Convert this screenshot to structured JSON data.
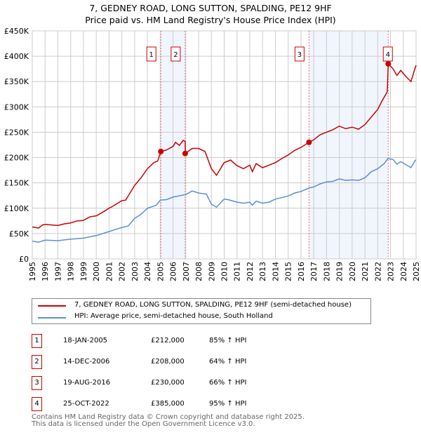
{
  "chart_data": {
    "type": "line",
    "title": "7, GEDNEY ROAD, LONG SUTTON, SPALDING, PE12 9HF",
    "subtitle": "Price paid vs. HM Land Registry's House Price Index (HPI)",
    "xlim": [
      1995,
      2025
    ],
    "ylim": [
      0,
      450000
    ],
    "x_ticks": [
      "1995",
      "1996",
      "1997",
      "1998",
      "1999",
      "2000",
      "2001",
      "2002",
      "2003",
      "2004",
      "2005",
      "2006",
      "2007",
      "2008",
      "2009",
      "2010",
      "2011",
      "2012",
      "2013",
      "2014",
      "2015",
      "2016",
      "2017",
      "2018",
      "2019",
      "2020",
      "2021",
      "2022",
      "2023",
      "2024",
      "2025"
    ],
    "y_ticks": [
      {
        "v": 0,
        "label": "£0"
      },
      {
        "v": 50000,
        "label": "£50K"
      },
      {
        "v": 100000,
        "label": "£100K"
      },
      {
        "v": 150000,
        "label": "£150K"
      },
      {
        "v": 200000,
        "label": "£200K"
      },
      {
        "v": 250000,
        "label": "£250K"
      },
      {
        "v": 300000,
        "label": "£300K"
      },
      {
        "v": 350000,
        "label": "£350K"
      },
      {
        "v": 400000,
        "label": "£400K"
      },
      {
        "v": 450000,
        "label": "£450K"
      }
    ],
    "grid": true,
    "series": [
      {
        "name": "7, GEDNEY ROAD, LONG SUTTON, SPALDING, PE12 9HF (semi-detached house)",
        "color": "#cc0000",
        "points": [
          [
            1995,
            63
          ],
          [
            1995.5,
            61
          ],
          [
            1995.8,
            67
          ],
          [
            1996,
            68
          ],
          [
            1997,
            66
          ],
          [
            1997.5,
            69
          ],
          [
            1998,
            71
          ],
          [
            1998.5,
            75
          ],
          [
            1999,
            76
          ],
          [
            1999.5,
            83
          ],
          [
            2000,
            85
          ],
          [
            2000.5,
            92
          ],
          [
            2001,
            100
          ],
          [
            2001.3,
            104
          ],
          [
            2002,
            115
          ],
          [
            2002.3,
            116
          ],
          [
            2003,
            145
          ],
          [
            2003.5,
            160
          ],
          [
            2004,
            178
          ],
          [
            2004.5,
            190
          ],
          [
            2004.8,
            193
          ],
          [
            2005.05,
            212
          ],
          [
            2005.5,
            215
          ],
          [
            2006,
            222
          ],
          [
            2006.2,
            230
          ],
          [
            2006.5,
            224
          ],
          [
            2006.8,
            234
          ],
          [
            2006.95,
            232
          ],
          [
            2006.96,
            208
          ],
          [
            2007.5,
            218
          ],
          [
            2008,
            218
          ],
          [
            2008.5,
            212
          ],
          [
            2009,
            178
          ],
          [
            2009.4,
            165
          ],
          [
            2010,
            190
          ],
          [
            2010.5,
            195
          ],
          [
            2011,
            184
          ],
          [
            2011.5,
            178
          ],
          [
            2012,
            185
          ],
          [
            2012.2,
            172
          ],
          [
            2012.5,
            188
          ],
          [
            2013,
            180
          ],
          [
            2013.5,
            185
          ],
          [
            2014,
            190
          ],
          [
            2014.5,
            198
          ],
          [
            2015,
            205
          ],
          [
            2015.5,
            214
          ],
          [
            2016,
            220
          ],
          [
            2016.63,
            230
          ],
          [
            2017,
            235
          ],
          [
            2017.5,
            245
          ],
          [
            2018,
            250
          ],
          [
            2018.5,
            255
          ],
          [
            2019,
            262
          ],
          [
            2019.5,
            257
          ],
          [
            2020,
            260
          ],
          [
            2020.5,
            256
          ],
          [
            2021,
            265
          ],
          [
            2021.5,
            280
          ],
          [
            2022,
            295
          ],
          [
            2022.3,
            310
          ],
          [
            2022.75,
            330
          ],
          [
            2022.82,
            385
          ],
          [
            2023.2,
            375
          ],
          [
            2023.5,
            362
          ],
          [
            2023.8,
            372
          ],
          [
            2024.2,
            360
          ],
          [
            2024.6,
            350
          ],
          [
            2024.9,
            375
          ],
          [
            2025,
            382
          ]
        ]
      },
      {
        "name": "HPI: Average price, semi-detached house, South Holland",
        "color": "#5b8fd4",
        "points": [
          [
            1995,
            35
          ],
          [
            1995.5,
            33
          ],
          [
            1996,
            37
          ],
          [
            1997,
            36
          ],
          [
            1998,
            39
          ],
          [
            1999,
            41
          ],
          [
            2000,
            46
          ],
          [
            2001,
            54
          ],
          [
            2002,
            62
          ],
          [
            2002.5,
            65
          ],
          [
            2003,
            80
          ],
          [
            2003.5,
            88
          ],
          [
            2004,
            100
          ],
          [
            2004.7,
            106
          ],
          [
            2005,
            116
          ],
          [
            2005.5,
            117
          ],
          [
            2006,
            122
          ],
          [
            2007,
            127
          ],
          [
            2007.5,
            134
          ],
          [
            2008,
            130
          ],
          [
            2008.6,
            128
          ],
          [
            2009,
            108
          ],
          [
            2009.4,
            102
          ],
          [
            2010,
            118
          ],
          [
            2010.3,
            117
          ],
          [
            2011,
            112
          ],
          [
            2011.5,
            110
          ],
          [
            2012,
            112
          ],
          [
            2012.2,
            106
          ],
          [
            2012.5,
            114
          ],
          [
            2013,
            110
          ],
          [
            2013.5,
            112
          ],
          [
            2014,
            118
          ],
          [
            2015,
            124
          ],
          [
            2015.5,
            130
          ],
          [
            2016,
            133
          ],
          [
            2016.63,
            140
          ],
          [
            2017,
            142
          ],
          [
            2017.5,
            148
          ],
          [
            2018,
            152
          ],
          [
            2018.5,
            153
          ],
          [
            2019,
            158
          ],
          [
            2019.5,
            155
          ],
          [
            2020,
            156
          ],
          [
            2020.5,
            155
          ],
          [
            2021,
            160
          ],
          [
            2021.5,
            172
          ],
          [
            2022,
            178
          ],
          [
            2022.5,
            188
          ],
          [
            2022.8,
            198
          ],
          [
            2023.2,
            196
          ],
          [
            2023.5,
            187
          ],
          [
            2023.8,
            192
          ],
          [
            2024.2,
            186
          ],
          [
            2024.6,
            180
          ],
          [
            2024.9,
            193
          ],
          [
            2025,
            196
          ]
        ]
      }
    ],
    "y_units": "thousands GBP for points",
    "shaded_ranges": [
      [
        2005.05,
        2006.96
      ],
      [
        2016.63,
        2022.82
      ]
    ],
    "sales": [
      {
        "id": "1",
        "x": 2005.05,
        "value": 212000,
        "date": "18-JAN-2005",
        "price": "£212,000",
        "hpi": "85% ↑ HPI"
      },
      {
        "id": "2",
        "x": 2006.95,
        "value": 208000,
        "date": "14-DEC-2006",
        "price": "£208,000",
        "hpi": "64% ↑ HPI"
      },
      {
        "id": "3",
        "x": 2016.63,
        "value": 230000,
        "date": "19-AUG-2016",
        "price": "£230,000",
        "hpi": "66% ↑ HPI"
      },
      {
        "id": "4",
        "x": 2022.82,
        "value": 385000,
        "date": "25-OCT-2022",
        "price": "£385,000",
        "hpi": "95% ↑ HPI"
      }
    ]
  },
  "footer": {
    "line1": "Contains HM Land Registry data © Crown copyright and database right 2025.",
    "line2": "This data is licensed under the Open Government Licence v3.0."
  }
}
